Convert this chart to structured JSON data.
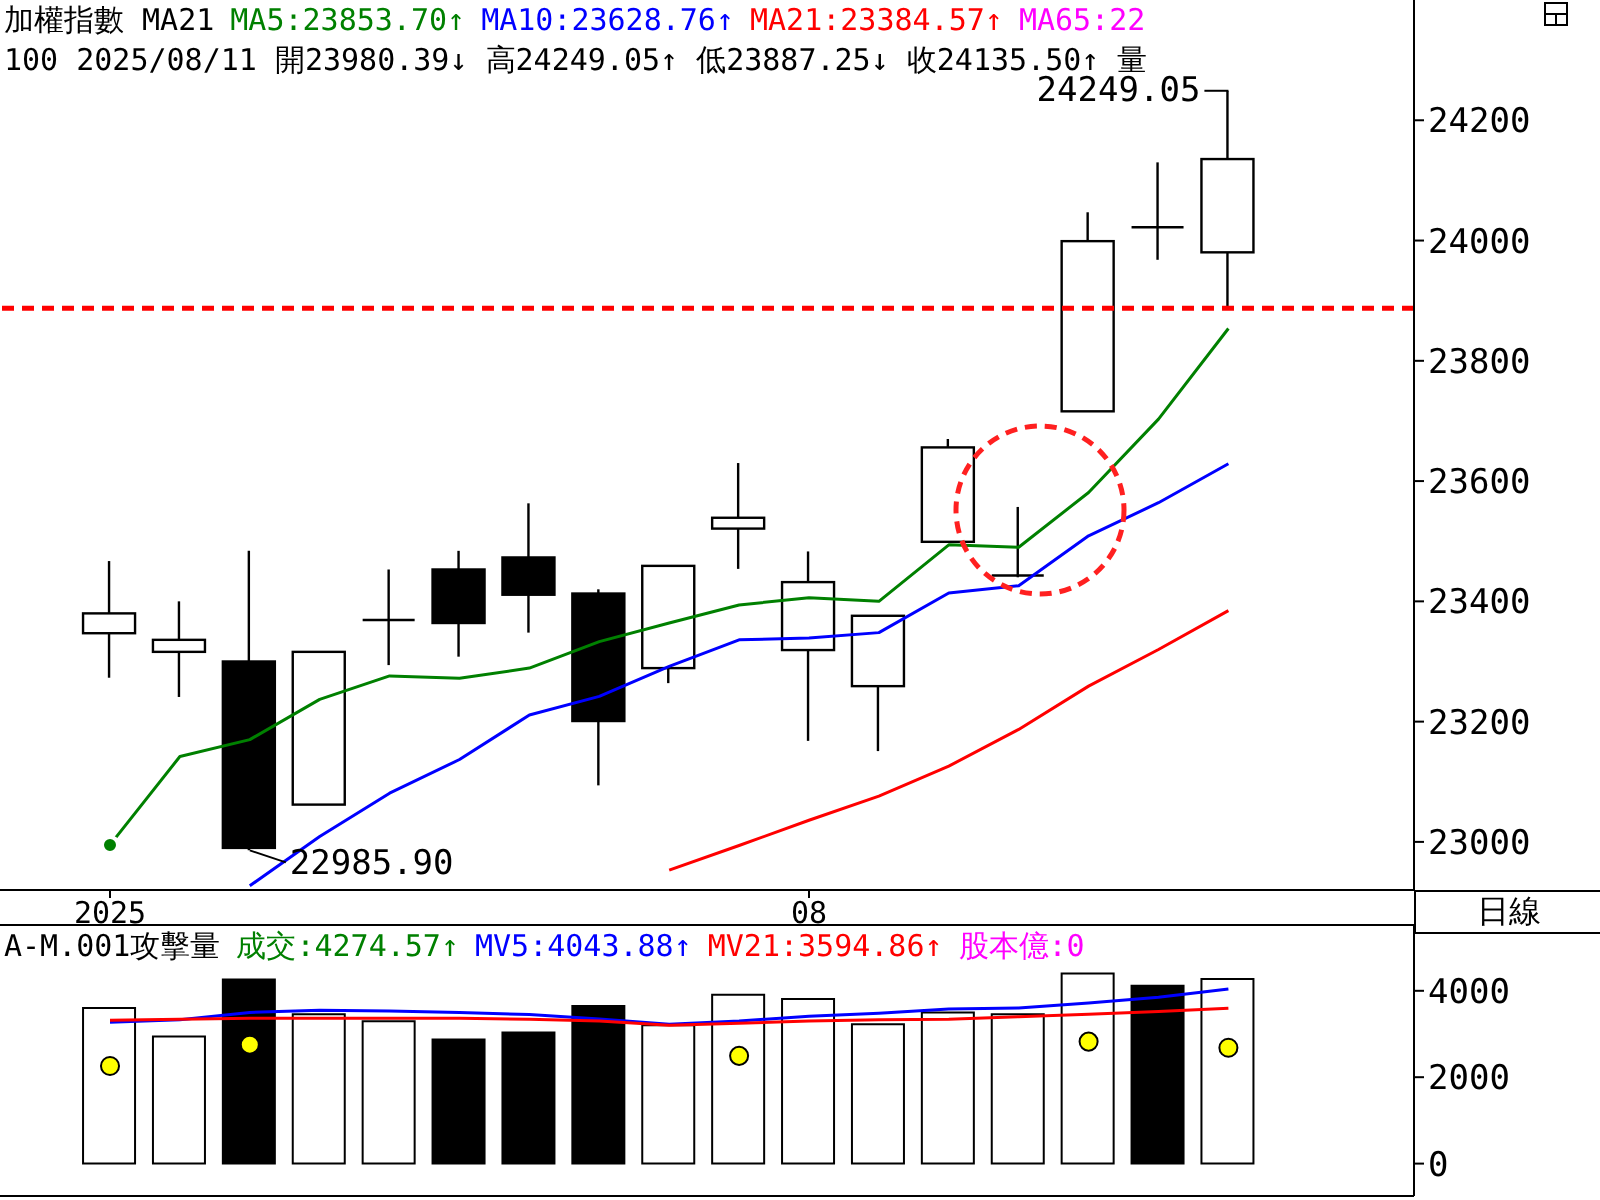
{
  "chart_data": [
    {
      "type": "candlestick",
      "title": "加權指數 MA21",
      "subtitle": "100 2025/08/11 開23980.39↓ 高24249.05↑ 低23887.25↓ 收24135.50↑ 量",
      "categories": [
        "2025",
        null,
        null,
        null,
        null,
        null,
        null,
        null,
        null,
        null,
        "08",
        null,
        null,
        null,
        null,
        null,
        null
      ],
      "ohlc": [
        [
          23347,
          23467,
          23273,
          23380
        ],
        [
          23316,
          23400,
          23241,
          23336
        ],
        [
          23300,
          23484,
          22985.9,
          22990
        ],
        [
          23062,
          23316,
          23062,
          23316
        ],
        [
          23369,
          23453,
          23294,
          23369
        ],
        [
          23453,
          23484,
          23308,
          23364
        ],
        [
          23473,
          23563,
          23348,
          23411
        ],
        [
          23413,
          23420,
          23094,
          23201
        ],
        [
          23289,
          23459,
          23264,
          23459
        ],
        [
          23521,
          23630,
          23454,
          23539
        ],
        [
          23319,
          23483,
          23168,
          23432
        ],
        [
          23259,
          23376,
          23151,
          23376
        ],
        [
          23499,
          23670,
          23499,
          23656
        ],
        [
          23443,
          23557,
          23440,
          23443
        ],
        [
          23716,
          24047,
          23716,
          23999
        ],
        [
          24022,
          24130,
          23968,
          24022
        ],
        [
          23980.39,
          24249.05,
          23887.25,
          24135.5
        ]
      ],
      "series": [
        {
          "name": "MA5:23853.70↑",
          "type": "line",
          "color": "#008000",
          "values": [
            22995,
            23142,
            23170,
            23237,
            23276,
            23272,
            23289,
            23333,
            23364,
            23394,
            23406,
            23400,
            23494,
            23490,
            23581,
            23703,
            23853.7
          ]
        },
        {
          "name": "MA10:23628.76↑",
          "type": "line",
          "color": "#0000ff",
          "values": [
            null,
            null,
            22927,
            23009,
            23081,
            23137,
            23211,
            23242,
            23292,
            23336,
            23339,
            23348,
            23414,
            23426,
            23509,
            23564,
            23628.76
          ]
        },
        {
          "name": "MA21:23384.57↑",
          "type": "line",
          "color": "#ff0000",
          "values": [
            null,
            null,
            null,
            null,
            null,
            null,
            null,
            null,
            22953,
            22994,
            23036,
            23076,
            23126,
            23187,
            23259,
            23320,
            23384.57
          ]
        }
      ],
      "ylim": [
        22920,
        24400
      ],
      "yticks": [
        23000,
        23200,
        23400,
        23600,
        23800,
        24000,
        24200
      ],
      "ref_lines": [
        {
          "axis": "y",
          "value": 23887.25,
          "color": "#ff0000",
          "line_style": "dashed"
        }
      ],
      "annotations": [
        "MA65:22",
        "日線",
        "24249.05",
        "22985.90"
      ],
      "legend": "top left"
    },
    {
      "type": "bar",
      "title": "A-M.001攻擊量",
      "categories": [
        "2025",
        null,
        null,
        null,
        null,
        null,
        null,
        null,
        null,
        null,
        "08",
        null,
        null,
        null,
        null,
        null,
        null
      ],
      "tick_labels": "y",
      "series": [
        {
          "name": "成交:4274.57↑",
          "type": "bar",
          "colors": [
            "#ffffff",
            "#ffffff",
            "#000000",
            "#ffffff",
            "#ffffff",
            "#000000",
            "#000000",
            "#000000",
            "#ffffff",
            "#ffffff",
            "#ffffff",
            "#ffffff",
            "#ffffff",
            "#ffffff",
            "#ffffff",
            "#000000",
            "#ffffff"
          ],
          "values": [
            3600,
            2941,
            4259,
            3459,
            3294,
            2870,
            3035,
            3647,
            3200,
            3906,
            3812,
            3224,
            3500,
            3459,
            4400,
            4118,
            4274.57
          ]
        },
        {
          "name": "MV5:4043.88↑",
          "type": "line",
          "color": "#0000ff",
          "values": [
            3270,
            3330,
            3500,
            3550,
            3530,
            3500,
            3450,
            3350,
            3224,
            3300,
            3412,
            3480,
            3576,
            3600,
            3718,
            3850,
            4043.88
          ]
        },
        {
          "name": "MV21:3594.86↑",
          "type": "line",
          "color": "#ff0000",
          "values": [
            3318,
            3340,
            3365,
            3365,
            3365,
            3365,
            3340,
            3300,
            3200,
            3250,
            3300,
            3330,
            3341,
            3400,
            3459,
            3520,
            3594.86
          ]
        },
        {
          "type": "scatter",
          "color": "#ffff00",
          "values": [
            2259,
            null,
            2753,
            null,
            null,
            null,
            null,
            null,
            null,
            2494,
            null,
            null,
            null,
            null,
            2824,
            null,
            2682
          ]
        }
      ],
      "ylim": [
        -750,
        5500
      ],
      "yticks": [
        0,
        2000,
        4000
      ],
      "annotations": [
        "股本億:0"
      ],
      "legend": "top left"
    }
  ]
}
